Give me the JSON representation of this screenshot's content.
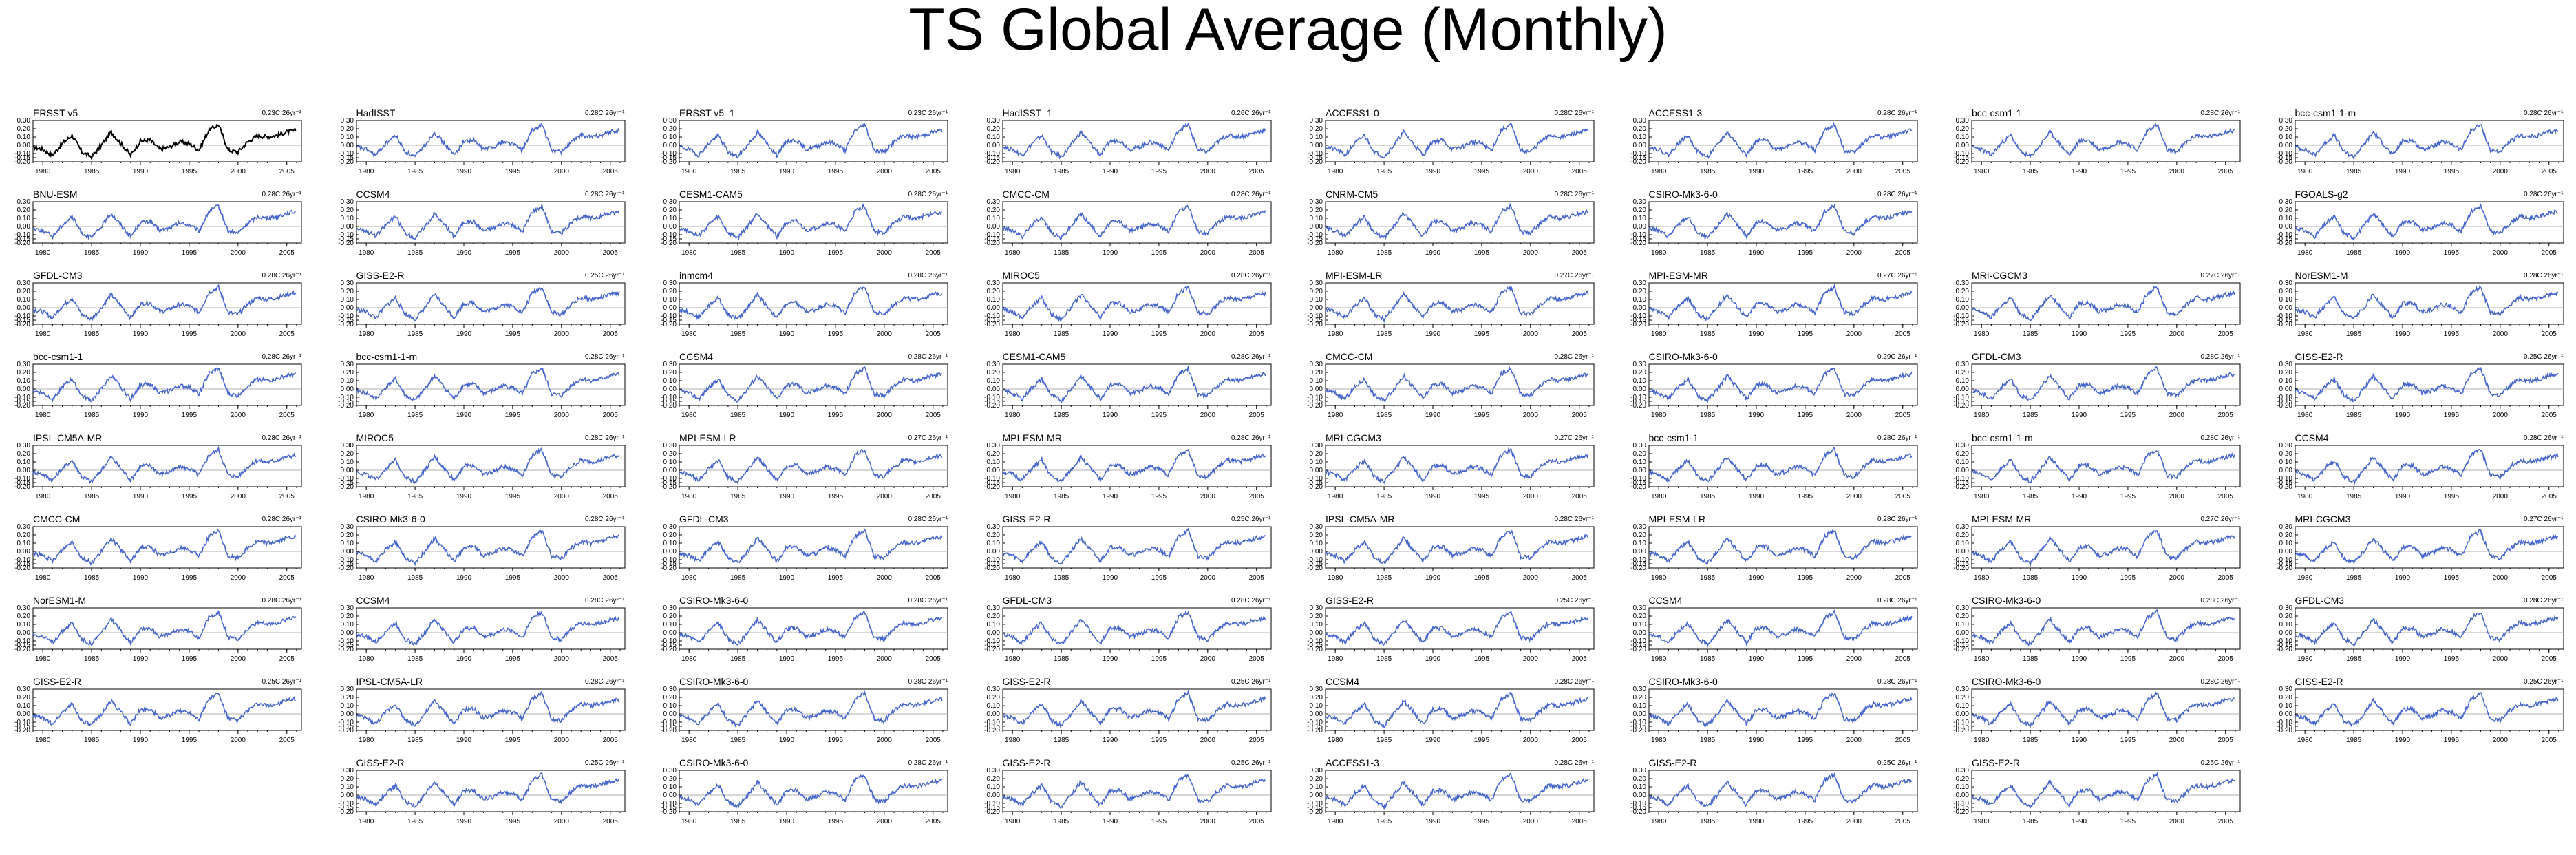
{
  "title": "TS Global Average (Monthly)",
  "colors": {
    "observation": "#000000",
    "model": "#4466cc",
    "zero_line": "#999999"
  },
  "chart_data": {
    "type": "line",
    "layout": "small-multiples",
    "xlim": [
      1979,
      2006.5
    ],
    "ylim": [
      -0.2,
      0.3
    ],
    "x_ticks": [
      "1980",
      "1985",
      "1990",
      "1995",
      "2000",
      "2005"
    ],
    "y_ticks": [
      "-0.20",
      "-0.15",
      "-0.10",
      "0.00",
      "0.10",
      "0.20",
      "0.30"
    ],
    "grid": false,
    "unit_suffix": "yr⁻¹",
    "shared_monthly_anomaly_x": [
      1979,
      1980,
      1981,
      1982,
      1983,
      1984,
      1985,
      1986,
      1987,
      1988,
      1989,
      1990,
      1991,
      1992,
      1993,
      1994,
      1995,
      1996,
      1997,
      1998,
      1999,
      2000,
      2001,
      2002,
      2003,
      2004,
      2005,
      2006
    ],
    "shared_monthly_anomaly_y": [
      -0.02,
      -0.05,
      -0.12,
      0.02,
      0.12,
      -0.08,
      -0.14,
      0.0,
      0.16,
      0.02,
      -0.12,
      0.05,
      0.06,
      -0.05,
      -0.02,
      0.04,
      0.02,
      -0.06,
      0.18,
      0.25,
      -0.06,
      -0.08,
      0.04,
      0.12,
      0.1,
      0.12,
      0.16,
      0.18
    ],
    "panels": [
      {
        "name": "ERSST v5",
        "stat": "0.23C 26yr",
        "series_type": "observation",
        "row": 0,
        "col": 0
      },
      {
        "name": "HadISST",
        "stat": "0.28C 26yr",
        "row": 0,
        "col": 1
      },
      {
        "name": "ERSST v5_1",
        "stat": "0.23C 26yr",
        "row": 0,
        "col": 2
      },
      {
        "name": "HadISST_1",
        "stat": "0.26C 26yr",
        "row": 0,
        "col": 3
      },
      {
        "name": "ACCESS1-0",
        "stat": "0.28C 26yr",
        "row": 0,
        "col": 4
      },
      {
        "name": "ACCESS1-3",
        "stat": "0.28C 26yr",
        "row": 0,
        "col": 5
      },
      {
        "name": "bcc-csm1-1",
        "stat": "0.28C 26yr",
        "row": 0,
        "col": 6
      },
      {
        "name": "bcc-csm1-1-m",
        "stat": "0.28C 26yr",
        "row": 0,
        "col": 7
      },
      {
        "name": "BNU-ESM",
        "stat": "0.28C 26yr",
        "row": 1,
        "col": 0
      },
      {
        "name": "CCSM4",
        "stat": "0.28C 26yr",
        "row": 1,
        "col": 1
      },
      {
        "name": "CESM1-CAM5",
        "stat": "0.28C 26yr",
        "row": 1,
        "col": 2
      },
      {
        "name": "CMCC-CM",
        "stat": "0.28C 26yr",
        "row": 1,
        "col": 3
      },
      {
        "name": "CNRM-CM5",
        "stat": "0.28C 26yr",
        "row": 1,
        "col": 4
      },
      {
        "name": "CSIRO-Mk3-6-0",
        "stat": "0.28C 26yr",
        "row": 1,
        "col": 5
      },
      {
        "name": "FGOALS-g2",
        "stat": "0.28C 26yr",
        "row": 1,
        "col": 7
      },
      {
        "name": "GFDL-CM3",
        "stat": "0.28C 26yr",
        "row": 2,
        "col": 0
      },
      {
        "name": "GISS-E2-R",
        "stat": "0.25C 26yr",
        "row": 2,
        "col": 1
      },
      {
        "name": "inmcm4",
        "stat": "0.28C 26yr",
        "row": 2,
        "col": 2
      },
      {
        "name": "MIROC5",
        "stat": "0.28C 26yr",
        "row": 2,
        "col": 3
      },
      {
        "name": "MPI-ESM-LR",
        "stat": "0.27C 26yr",
        "row": 2,
        "col": 4
      },
      {
        "name": "MPI-ESM-MR",
        "stat": "0.27C 26yr",
        "row": 2,
        "col": 5
      },
      {
        "name": "MRI-CGCM3",
        "stat": "0.27C 26yr",
        "row": 2,
        "col": 6
      },
      {
        "name": "NorESM1-M",
        "stat": "0.28C 26yr",
        "row": 2,
        "col": 7
      },
      {
        "name": "bcc-csm1-1",
        "stat": "0.28C 26yr",
        "row": 3,
        "col": 0
      },
      {
        "name": "bcc-csm1-1-m",
        "stat": "0.28C 26yr",
        "row": 3,
        "col": 1
      },
      {
        "name": "CCSM4",
        "stat": "0.28C 26yr",
        "row": 3,
        "col": 2
      },
      {
        "name": "CESM1-CAM5",
        "stat": "0.28C 26yr",
        "row": 3,
        "col": 3
      },
      {
        "name": "CMCC-CM",
        "stat": "0.28C 26yr",
        "row": 3,
        "col": 4
      },
      {
        "name": "CSIRO-Mk3-6-0",
        "stat": "0.29C 26yr",
        "row": 3,
        "col": 5
      },
      {
        "name": "GFDL-CM3",
        "stat": "0.28C 26yr",
        "row": 3,
        "col": 6
      },
      {
        "name": "GISS-E2-R",
        "stat": "0.25C 26yr",
        "row": 3,
        "col": 7
      },
      {
        "name": "IPSL-CM5A-MR",
        "stat": "0.28C 26yr",
        "row": 4,
        "col": 0
      },
      {
        "name": "MIROC5",
        "stat": "0.28C 26yr",
        "row": 4,
        "col": 1
      },
      {
        "name": "MPI-ESM-LR",
        "stat": "0.27C 26yr",
        "row": 4,
        "col": 2
      },
      {
        "name": "MPI-ESM-MR",
        "stat": "0.28C 26yr",
        "row": 4,
        "col": 3
      },
      {
        "name": "MRI-CGCM3",
        "stat": "0.27C 26yr",
        "row": 4,
        "col": 4
      },
      {
        "name": "bcc-csm1-1",
        "stat": "0.28C 26yr",
        "row": 4,
        "col": 5
      },
      {
        "name": "bcc-csm1-1-m",
        "stat": "0.28C 26yr",
        "row": 4,
        "col": 6
      },
      {
        "name": "CCSM4",
        "stat": "0.28C 26yr",
        "row": 4,
        "col": 7
      },
      {
        "name": "CMCC-CM",
        "stat": "0.28C 26yr",
        "row": 5,
        "col": 0
      },
      {
        "name": "CSIRO-Mk3-6-0",
        "stat": "0.28C 26yr",
        "row": 5,
        "col": 1
      },
      {
        "name": "GFDL-CM3",
        "stat": "0.28C 26yr",
        "row": 5,
        "col": 2
      },
      {
        "name": "GISS-E2-R",
        "stat": "0.25C 26yr",
        "row": 5,
        "col": 3
      },
      {
        "name": "IPSL-CM5A-MR",
        "stat": "0.28C 26yr",
        "row": 5,
        "col": 4
      },
      {
        "name": "MPI-ESM-LR",
        "stat": "0.28C 26yr",
        "row": 5,
        "col": 5
      },
      {
        "name": "MPI-ESM-MR",
        "stat": "0.27C 26yr",
        "row": 5,
        "col": 6
      },
      {
        "name": "MRI-CGCM3",
        "stat": "0.27C 26yr",
        "row": 5,
        "col": 7
      },
      {
        "name": "NorESM1-M",
        "stat": "0.28C 26yr",
        "row": 6,
        "col": 0
      },
      {
        "name": "CCSM4",
        "stat": "0.28C 26yr",
        "row": 6,
        "col": 1
      },
      {
        "name": "CSIRO-Mk3-6-0",
        "stat": "0.28C 26yr",
        "row": 6,
        "col": 2
      },
      {
        "name": "GFDL-CM3",
        "stat": "0.28C 26yr",
        "row": 6,
        "col": 3
      },
      {
        "name": "GISS-E2-R",
        "stat": "0.25C 26yr",
        "row": 6,
        "col": 4
      },
      {
        "name": "CCSM4",
        "stat": "0.28C 26yr",
        "row": 6,
        "col": 5
      },
      {
        "name": "CSIRO-Mk3-6-0",
        "stat": "0.28C 26yr",
        "row": 6,
        "col": 6
      },
      {
        "name": "GFDL-CM3",
        "stat": "0.28C 26yr",
        "row": 6,
        "col": 7
      },
      {
        "name": "GISS-E2-R",
        "stat": "0.25C 26yr",
        "row": 7,
        "col": 0
      },
      {
        "name": "IPSL-CM5A-LR",
        "stat": "0.28C 26yr",
        "row": 7,
        "col": 1
      },
      {
        "name": "CSIRO-Mk3-6-0",
        "stat": "0.28C 26yr",
        "row": 7,
        "col": 2
      },
      {
        "name": "GISS-E2-R",
        "stat": "0.25C 26yr",
        "row": 7,
        "col": 3
      },
      {
        "name": "CCSM4",
        "stat": "0.28C 26yr",
        "row": 7,
        "col": 4
      },
      {
        "name": "CSIRO-Mk3-6-0",
        "stat": "0.28C 26yr",
        "row": 7,
        "col": 5
      },
      {
        "name": "CSIRO-Mk3-6-0",
        "stat": "0.28C 26yr",
        "row": 7,
        "col": 6
      },
      {
        "name": "GISS-E2-R",
        "stat": "0.25C 26yr",
        "row": 7,
        "col": 7
      },
      {
        "name": "GISS-E2-R",
        "stat": "0.25C 26yr",
        "row": 8,
        "col": 1
      },
      {
        "name": "CSIRO-Mk3-6-0",
        "stat": "0.28C 26yr",
        "row": 8,
        "col": 2
      },
      {
        "name": "GISS-E2-R",
        "stat": "0.25C 26yr",
        "row": 8,
        "col": 3
      },
      {
        "name": "ACCESS1-3",
        "stat": "0.28C 26yr",
        "row": 8,
        "col": 4
      },
      {
        "name": "GISS-E2-R",
        "stat": "0.25C 26yr",
        "row": 8,
        "col": 5
      },
      {
        "name": "GISS-E2-R",
        "stat": "0.25C 26yr",
        "row": 8,
        "col": 6
      }
    ]
  }
}
